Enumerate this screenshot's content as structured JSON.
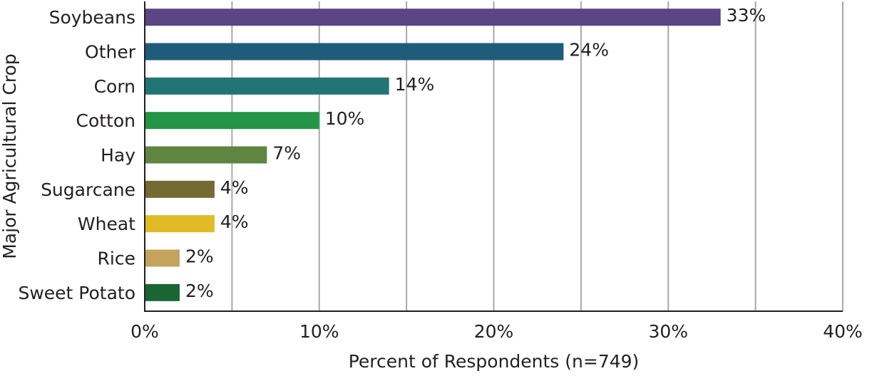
{
  "chart_data": {
    "type": "bar",
    "orientation": "horizontal",
    "categories": [
      "Soybeans",
      "Other",
      "Corn",
      "Cotton",
      "Hay",
      "Sugarcane",
      "Wheat",
      "Rice",
      "Sweet Potato"
    ],
    "values": [
      33,
      24,
      14,
      10,
      7,
      4,
      4,
      2,
      2
    ],
    "value_labels": [
      "33%",
      "24%",
      "14%",
      "10%",
      "7%",
      "4%",
      "4%",
      "2%",
      "2%"
    ],
    "bar_colors": [
      "#5b4585",
      "#1f5c7a",
      "#217573",
      "#249447",
      "#5e8641",
      "#756a31",
      "#e0bb25",
      "#c4a35d",
      "#1a6532"
    ],
    "xlabel": "Percent of Respondents (n=749)",
    "ylabel": "Major Agricultural Crop",
    "xlim": [
      0,
      40
    ],
    "x_ticks": [
      0,
      10,
      20,
      30,
      40
    ],
    "x_tick_labels": [
      "0%",
      "10%",
      "20%",
      "30%",
      "40%"
    ],
    "grid": "vertical",
    "grid_step": 5,
    "legend": "none"
  }
}
